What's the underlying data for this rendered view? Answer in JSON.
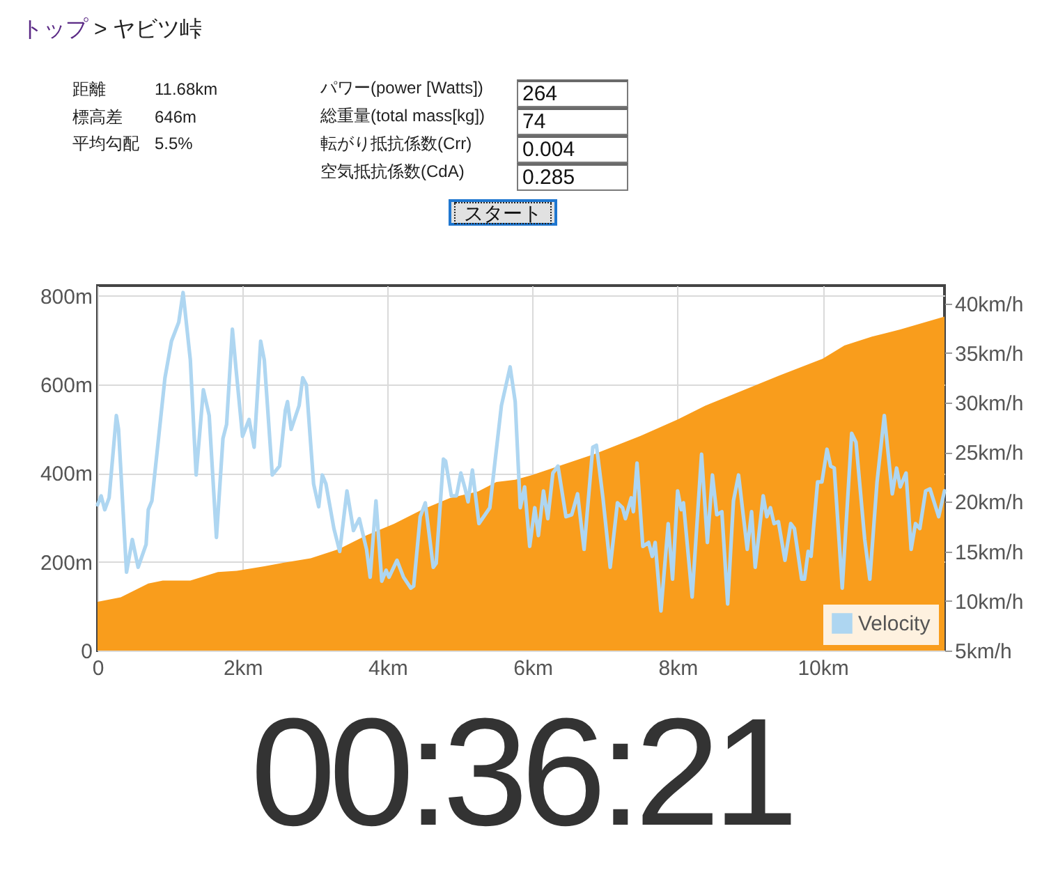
{
  "chart_data": [
    {
      "type": "other",
      "title": "トップ > ヤビツ峠",
      "annotations": [
        "距離",
        "11.68km",
        "標高差",
        "646m",
        "平均勾配",
        "5.5%"
      ]
    },
    {
      "type": "other",
      "annotations": [
        "パワー(power [Watts])",
        "264",
        "総重量(total mass[kg])",
        "74",
        "転がり抵抗係数(Crr)",
        "0.004",
        "空気抵抗係数(CdA)",
        "0.285",
        "スタート"
      ]
    },
    {
      "type": "area",
      "xlim": [
        0,
        11.68
      ],
      "xticks": [
        0,
        {
          "value": 2,
          "label": "2km"
        },
        {
          "value": 4,
          "label": "4km"
        },
        {
          "value": 6,
          "label": "6km"
        },
        {
          "value": 8,
          "label": "8km"
        },
        {
          "value": 10,
          "label": "10km"
        }
      ],
      "ylim": [
        0,
        823
      ],
      "yticks": [
        0,
        {
          "value": 200,
          "label": "200m"
        },
        {
          "value": 400,
          "label": "400m"
        },
        {
          "value": 600,
          "label": "600m"
        },
        {
          "value": 800,
          "label": "800m"
        }
      ],
      "y2lim": [
        5,
        41.8
      ],
      "y2ticks": [
        {
          "value": 5,
          "label": "5km/h"
        },
        {
          "value": 10,
          "label": "10km/h"
        },
        {
          "value": 15,
          "label": "15km/h"
        },
        {
          "value": 20,
          "label": "20km/h"
        },
        {
          "value": 25,
          "label": "25km/h"
        },
        {
          "value": 30,
          "label": "30km/h"
        },
        {
          "value": 35,
          "label": "35km/h"
        },
        {
          "value": 40,
          "label": "40km/h"
        }
      ],
      "grid": true,
      "legend": "bottom right",
      "series": [
        {
          "type": "area",
          "color": "#f99d1c",
          "x": [
            0,
            0.32,
            0.7,
            0.9,
            1.28,
            1.66,
            1.92,
            2.3,
            2.56,
            2.94,
            3.33,
            3.71,
            4.09,
            4.48,
            4.86,
            5.25,
            5.5,
            5.76,
            6.0,
            6.85,
            7.49,
            8.0,
            8.38,
            8.77,
            9.4,
            10.0,
            10.3,
            10.68,
            11.07,
            11.68
          ],
          "values": [
            110,
            120,
            151,
            158,
            158,
            177,
            180,
            190,
            198,
            208,
            229,
            260,
            286,
            318,
            344,
            359,
            380,
            385,
            396,
            443,
            484,
            521,
            552,
            578,
            620,
            658,
            688,
            708,
            724,
            753
          ]
        },
        {
          "type": "line",
          "name": "Velocity",
          "color": "#aed6f1",
          "axis": "y2",
          "x": [
            0,
            0.05,
            0.1,
            0.16,
            0.26,
            0.29,
            0.4,
            0.48,
            0.56,
            0.67,
            0.7,
            0.75,
            0.93,
            1.02,
            1.12,
            1.18,
            1.28,
            1.36,
            1.46,
            1.54,
            1.64,
            1.73,
            1.78,
            1.86,
            1.91,
            2.0,
            2.09,
            2.16,
            2.25,
            2.3,
            2.41,
            2.51,
            2.59,
            2.62,
            2.67,
            2.78,
            2.83,
            2.88,
            2.98,
            3.05,
            3.1,
            3.15,
            3.26,
            3.34,
            3.44,
            3.53,
            3.61,
            3.71,
            3.76,
            3.84,
            3.92,
            3.98,
            4.02,
            4.13,
            4.22,
            4.32,
            4.36,
            4.45,
            4.52,
            4.63,
            4.67,
            4.77,
            4.8,
            4.88,
            4.95,
            5.01,
            5.07,
            5.11,
            5.17,
            5.26,
            5.41,
            5.49,
            5.57,
            5.69,
            5.76,
            5.83,
            5.89,
            5.96,
            6.03,
            6.08,
            6.15,
            6.21,
            6.28,
            6.35,
            6.46,
            6.54,
            6.62,
            6.71,
            6.83,
            6.88,
            6.97,
            7.07,
            7.17,
            7.24,
            7.28,
            7.36,
            7.39,
            7.44,
            7.52,
            7.6,
            7.65,
            7.69,
            7.77,
            7.87,
            7.93,
            8.0,
            8.05,
            8.08,
            8.2,
            8.33,
            8.41,
            8.48,
            8.54,
            8.61,
            8.69,
            8.77,
            8.84,
            8.96,
            9.02,
            9.07,
            9.18,
            9.23,
            9.28,
            9.33,
            9.39,
            9.48,
            9.56,
            9.61,
            9.71,
            9.75,
            9.8,
            9.84,
            9.93,
            9.99,
            10.06,
            10.11,
            10.16,
            10.27,
            10.4,
            10.46,
            10.58,
            10.65,
            10.75,
            10.85,
            10.96,
            11.02,
            11.07,
            11.15,
            11.22,
            11.28,
            11.34,
            11.42,
            11.48,
            11.6,
            11.68
          ],
          "values": [
            19.7,
            20.6,
            19.2,
            20.4,
            28.7,
            27.3,
            12.9,
            16.2,
            13.4,
            15.7,
            19.2,
            20.1,
            32.5,
            36.2,
            38.1,
            41.1,
            34.3,
            22.7,
            31.3,
            28.7,
            16.4,
            26.4,
            27.8,
            37.4,
            33.4,
            26.6,
            28.3,
            25.5,
            36.2,
            34.3,
            22.7,
            23.6,
            29.2,
            30.1,
            27.3,
            29.7,
            32.5,
            31.8,
            21.8,
            19.5,
            22.7,
            21.8,
            17.3,
            15.0,
            21.1,
            17.1,
            18.3,
            15.2,
            12.4,
            20.1,
            12.0,
            13.1,
            12.4,
            14.1,
            12.4,
            11.3,
            11.5,
            18.5,
            19.9,
            13.4,
            13.8,
            24.3,
            24.1,
            20.6,
            20.6,
            22.9,
            21.3,
            20.0,
            23.2,
            17.8,
            19.4,
            24.6,
            29.7,
            33.6,
            30.1,
            19.4,
            21.5,
            15.5,
            19.4,
            16.6,
            21.1,
            18.3,
            22.9,
            23.6,
            18.5,
            18.7,
            20.8,
            15.2,
            25.5,
            25.7,
            20.4,
            13.4,
            19.9,
            19.4,
            18.3,
            20.4,
            19.0,
            23.9,
            15.5,
            15.9,
            14.5,
            15.9,
            9.0,
            17.8,
            12.2,
            21.1,
            19.2,
            19.9,
            10.4,
            24.8,
            15.9,
            22.7,
            18.7,
            19.0,
            9.7,
            20.1,
            22.7,
            15.2,
            19.0,
            13.4,
            20.6,
            18.5,
            19.4,
            17.8,
            18.0,
            14.1,
            17.8,
            17.3,
            12.2,
            12.2,
            15.0,
            14.5,
            22.0,
            22.0,
            25.3,
            23.6,
            23.4,
            11.3,
            26.9,
            26.0,
            16.2,
            12.2,
            22.0,
            28.7,
            20.8,
            23.4,
            21.5,
            22.9,
            15.2,
            17.8,
            17.3,
            21.1,
            21.3,
            18.5,
            21.1
          ]
        }
      ]
    },
    {
      "type": "other",
      "annotations": [
        "00:36:21"
      ]
    }
  ]
}
